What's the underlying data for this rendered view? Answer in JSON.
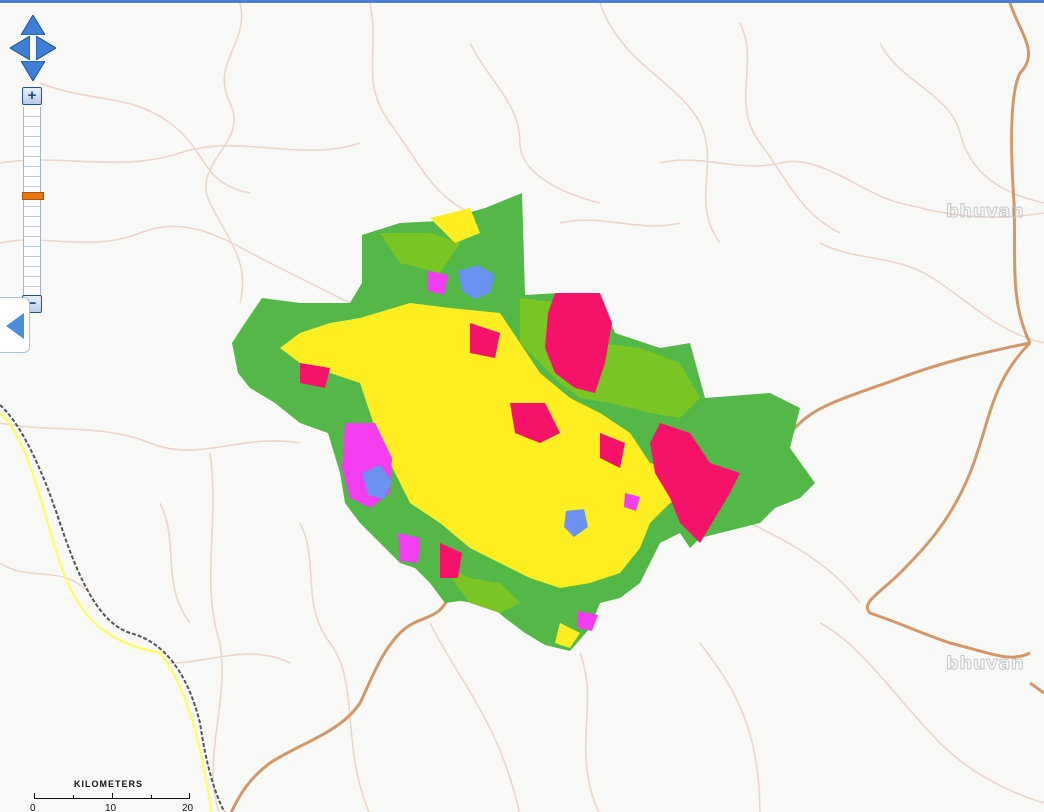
{
  "map": {
    "watermark": "bhuvan",
    "colors": {
      "forest": "#53b848",
      "scrub": "#79c524",
      "cropland": "#ffee22",
      "fallow": "#f5136a",
      "builtup": "#f23ef0",
      "water": "#6b92f2",
      "road_major": "#d4976a",
      "road_minor": "#ecd6cc",
      "rail": "#555555",
      "boundary": "#ffff55"
    }
  },
  "navigation": {
    "pan_up": "pan-up",
    "pan_down": "pan-down",
    "pan_left": "pan-left",
    "pan_right": "pan-right",
    "zoom_in": "+",
    "zoom_out": "−",
    "zoom_level": 0.45
  },
  "scale_bar": {
    "title": "KILOMETERS",
    "labels": [
      "0",
      "10",
      "20"
    ]
  }
}
